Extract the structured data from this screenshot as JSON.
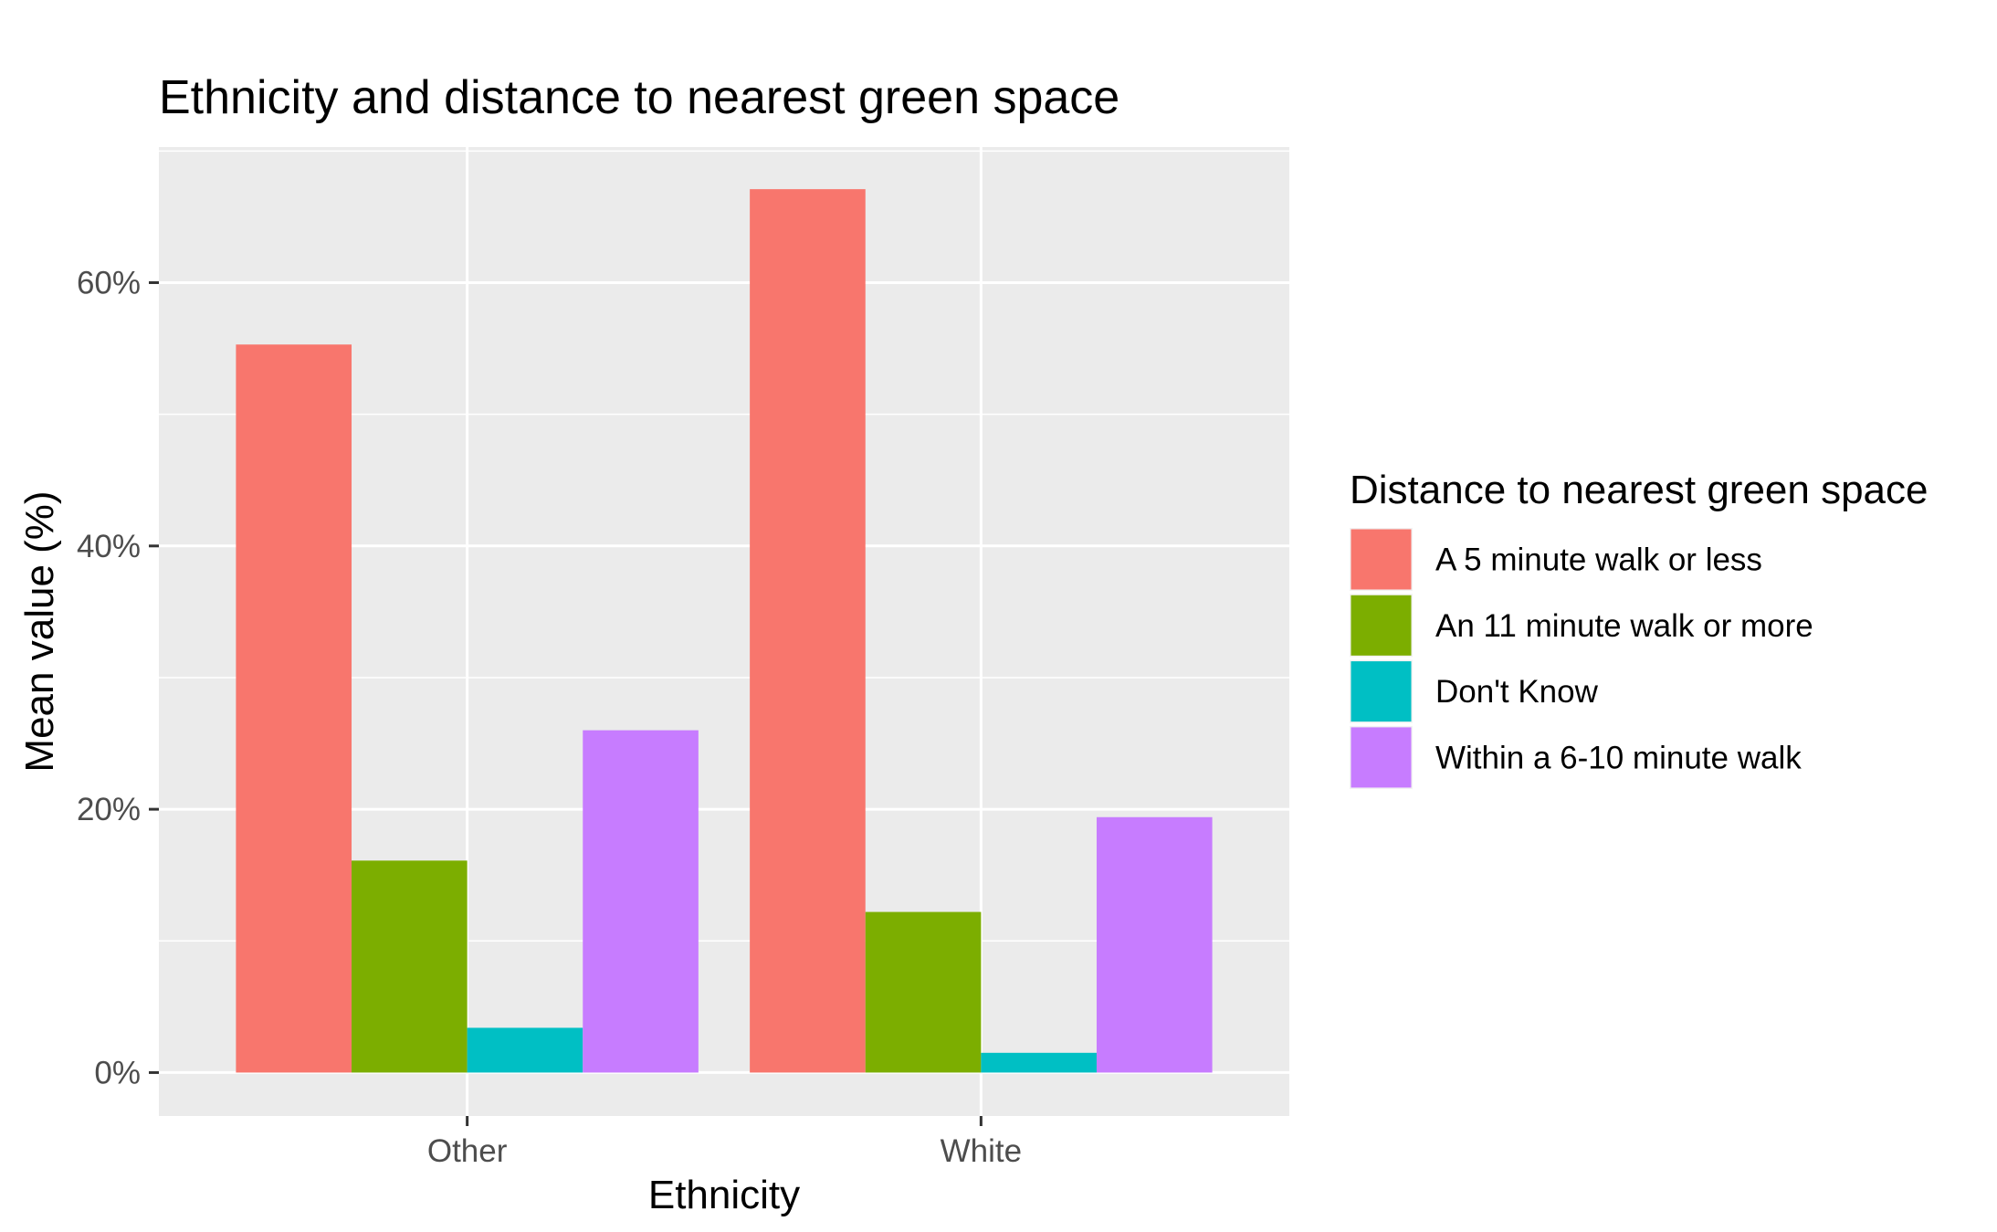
{
  "chart_data": {
    "type": "bar",
    "title": "Ethnicity and distance to nearest green space",
    "xlabel": "Ethnicity",
    "ylabel": "Mean value (%)",
    "categories": [
      "Other",
      "White"
    ],
    "series": [
      {
        "name": "A 5 minute walk or less",
        "color": "#F8766D",
        "values": [
          55.3,
          67.1
        ]
      },
      {
        "name": "An 11 minute walk or more",
        "color": "#7CAE00",
        "values": [
          16.1,
          12.2
        ]
      },
      {
        "name": "Don't Know",
        "color": "#00BFC4",
        "values": [
          3.4,
          1.5
        ]
      },
      {
        "name": "Within a 6-10 minute walk",
        "color": "#C77CFF",
        "values": [
          26.0,
          19.4
        ]
      }
    ],
    "ylim": [
      -3.3,
      70.3
    ],
    "yticks": [
      0,
      20,
      40,
      60
    ],
    "ytick_labels": [
      "0%",
      "20%",
      "40%",
      "60%"
    ],
    "grid": true,
    "legend": {
      "title": "Distance to nearest green space",
      "position": "right"
    }
  }
}
